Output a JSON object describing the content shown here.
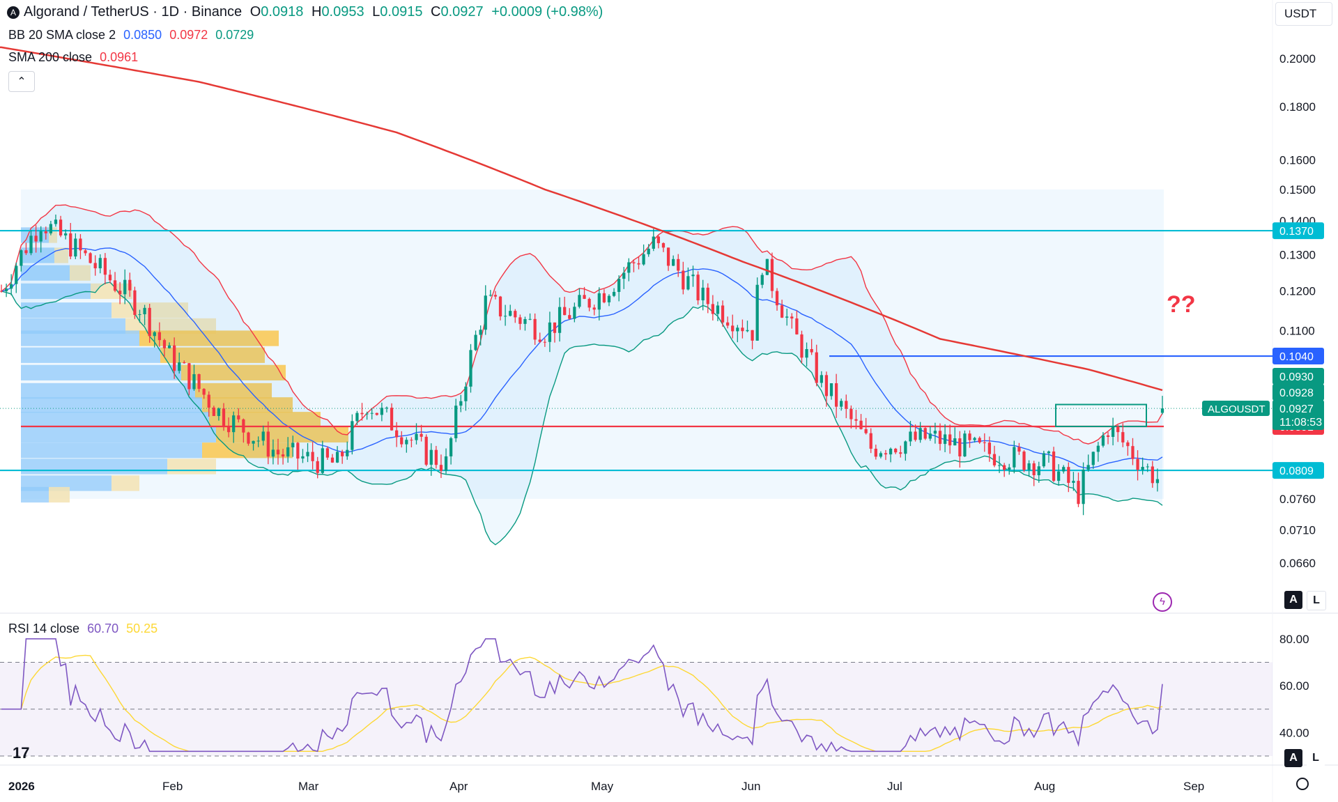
{
  "header": {
    "symbol_title": "Algorand / TetherUS · 1D · Binance",
    "open_label": "O",
    "open": "0.0918",
    "high_label": "H",
    "high": "0.0953",
    "low_label": "L",
    "low": "0.0915",
    "close_label": "C",
    "close": "0.0927",
    "change": "+0.0009 (+0.98%)",
    "bb_label": "BB 20 SMA close 2",
    "bb_basis": "0.0850",
    "bb_upper": "0.0972",
    "bb_lower": "0.0729",
    "sma_label": "SMA 200 close",
    "sma_value": "0.0961",
    "rsi_label": "RSI 14 close",
    "rsi_value": "60.70",
    "rsi_ma": "50.25"
  },
  "toolbar": {
    "currency": "USDT",
    "auto_label": "A",
    "log_label": "L",
    "collapse_icon": "chevron-up-icon"
  },
  "annotation": {
    "question_marks": "??"
  },
  "chart_data": {
    "type": "candlestick",
    "price_scale": {
      "ticks": [
        "0.2000",
        "0.1800",
        "0.1600",
        "0.1500",
        "0.1400",
        "0.1300",
        "0.1200",
        "0.1100",
        "0.0760",
        "0.0710",
        "0.0660"
      ],
      "min": 0.062,
      "max": 0.21,
      "log": true
    },
    "x_labels": [
      "2026",
      "Feb",
      "Mar",
      "Apr",
      "May",
      "Jun",
      "Jul",
      "Aug",
      "Sep"
    ],
    "levels": [
      {
        "label": "0.1370",
        "value": 0.137,
        "color": "#00bcd4"
      },
      {
        "label": "0.1040",
        "value": 0.104,
        "color": "#2962ff"
      },
      {
        "label": "0.0891",
        "value": 0.0891,
        "color": "#f23645"
      },
      {
        "label": "0.0809",
        "value": 0.0809,
        "color": "#00bcd4"
      }
    ],
    "price_tags": [
      {
        "label": "0.0930",
        "value": 0.093,
        "color": "#089981"
      },
      {
        "label": "0.0928",
        "value": 0.0928,
        "color": "#089981"
      },
      {
        "label": "0.0927",
        "value": 0.0927,
        "color": "#089981"
      },
      {
        "label": "11:08:53",
        "value": 0.0916,
        "color": "#089981"
      }
    ],
    "symbol_tag": "ALGOUSDT",
    "rsi_scale": {
      "ticks": [
        "80.00",
        "60.00",
        "40.00"
      ],
      "min": 30,
      "max": 85,
      "bands": [
        70,
        50,
        30
      ]
    },
    "colors": {
      "up": "#089981",
      "down": "#f23645",
      "sma200": "#e53935",
      "bb_basis": "#2962ff",
      "bb_upper": "#f23645",
      "bb_lower": "#089981",
      "rsi": "#7e57c2",
      "rsi_ma": "#fdd835"
    }
  }
}
